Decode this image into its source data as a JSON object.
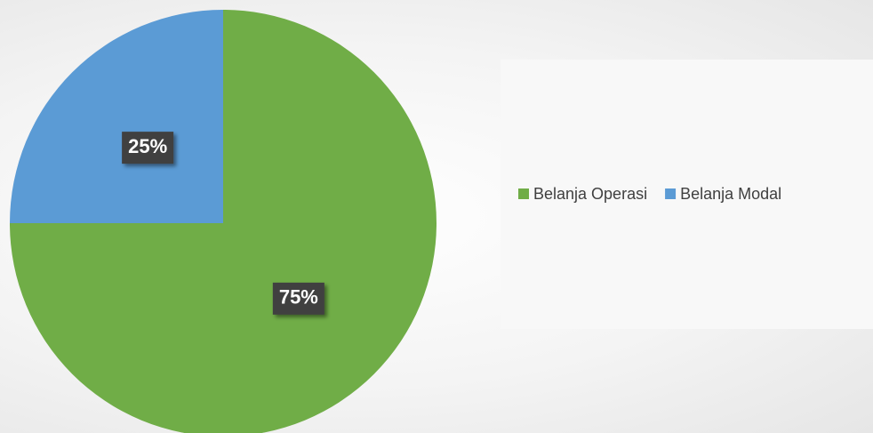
{
  "chart_data": {
    "type": "pie",
    "categories": [
      "Belanja Operasi",
      "Belanja Modal"
    ],
    "series": [
      {
        "colors": [
          "#70ad47",
          "#5b9bd5"
        ],
        "values": [
          75,
          25
        ],
        "value_labels": [
          "75%",
          "25%"
        ]
      }
    ],
    "legend": "right"
  }
}
